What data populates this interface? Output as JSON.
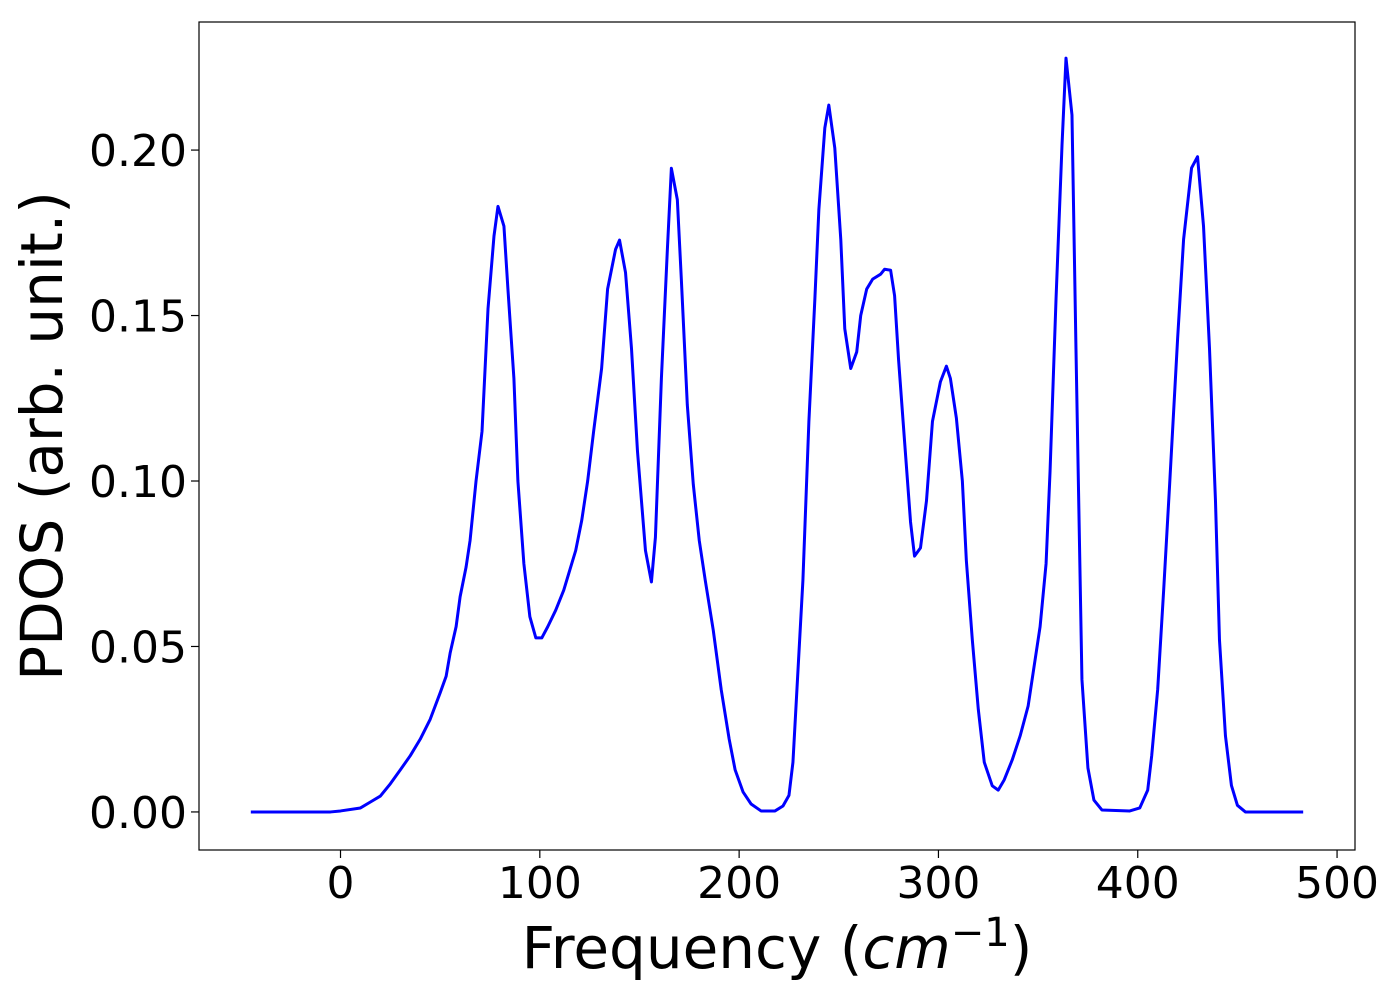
{
  "chart_data": {
    "type": "line",
    "ylabel": "PDOS (arb. unit.)",
    "xlabel": [
      "Frequency (",
      "cm",
      "−1",
      ")"
    ],
    "xlim": [
      -71,
      509
    ],
    "ylim": [
      -0.0115,
      0.2387
    ],
    "xticks": [
      0,
      100,
      200,
      300,
      400,
      500
    ],
    "yticks": [
      {
        "value": 0,
        "label": "0.00"
      },
      {
        "value": 0.05,
        "label": "0.05"
      },
      {
        "value": 0.1,
        "label": "0.10"
      },
      {
        "value": 0.15,
        "label": "0.15"
      },
      {
        "value": 0.2,
        "label": "0.20"
      }
    ],
    "x": [
      -45,
      -5,
      0,
      10,
      15,
      20,
      25,
      30,
      35,
      40,
      45,
      50,
      53,
      55,
      58,
      60,
      63,
      65,
      68,
      71,
      74,
      77,
      79,
      82,
      84,
      87,
      89,
      92,
      95,
      98,
      101,
      104,
      108,
      112,
      115,
      118,
      121,
      124,
      127,
      131,
      134,
      138,
      140,
      143,
      146,
      149,
      153,
      156,
      158,
      161,
      164,
      166,
      169,
      171,
      174,
      177,
      180,
      183,
      187,
      191,
      195,
      198,
      202,
      206,
      211,
      218,
      222,
      225,
      227,
      229,
      232,
      235,
      238,
      240,
      243,
      245,
      248,
      251,
      253,
      256,
      259,
      261,
      264,
      267,
      271,
      273,
      276,
      278,
      280,
      283,
      286,
      288,
      291,
      294,
      297,
      301,
      304,
      306,
      309,
      312,
      314,
      317,
      320,
      323,
      327,
      330,
      333,
      337,
      341,
      345,
      348,
      351,
      354,
      356,
      359,
      362,
      364,
      367,
      369,
      372,
      375,
      378,
      382,
      396,
      401,
      405,
      407,
      410,
      413,
      416,
      420,
      423,
      427,
      430,
      433,
      436,
      439,
      441,
      444,
      447,
      450,
      454,
      483
    ],
    "series": [
      {
        "color": "#0000ff",
        "values": [
          0,
          0,
          0.0003,
          0.0012,
          0.003,
          0.0048,
          0.0085,
          0.0127,
          0.017,
          0.022,
          0.028,
          0.036,
          0.041,
          0.048,
          0.056,
          0.065,
          0.074,
          0.082,
          0.1,
          0.115,
          0.152,
          0.174,
          0.183,
          0.177,
          0.158,
          0.131,
          0.1,
          0.075,
          0.059,
          0.0526,
          0.0526,
          0.056,
          0.061,
          0.067,
          0.073,
          0.079,
          0.088,
          0.1,
          0.115,
          0.134,
          0.158,
          0.17,
          0.1728,
          0.163,
          0.14,
          0.109,
          0.079,
          0.0695,
          0.083,
          0.131,
          0.17,
          0.1945,
          0.185,
          0.161,
          0.123,
          0.099,
          0.082,
          0.07,
          0.055,
          0.037,
          0.022,
          0.0127,
          0.006,
          0.0024,
          0.0003,
          0.0003,
          0.0018,
          0.005,
          0.015,
          0.037,
          0.07,
          0.118,
          0.155,
          0.182,
          0.2067,
          0.2136,
          0.2006,
          0.173,
          0.146,
          0.134,
          0.139,
          0.15,
          0.158,
          0.161,
          0.1625,
          0.164,
          0.1637,
          0.156,
          0.1366,
          0.112,
          0.0876,
          0.0773,
          0.0798,
          0.094,
          0.118,
          0.13,
          0.1347,
          0.131,
          0.119,
          0.1,
          0.076,
          0.052,
          0.031,
          0.015,
          0.0079,
          0.0066,
          0.0097,
          0.0157,
          0.023,
          0.032,
          0.044,
          0.056,
          0.075,
          0.103,
          0.155,
          0.2015,
          0.2278,
          0.2106,
          0.14,
          0.04,
          0.0133,
          0.0036,
          0.0006,
          0.0003,
          0.0012,
          0.0066,
          0.017,
          0.037,
          0.067,
          0.099,
          0.143,
          0.173,
          0.1946,
          0.198,
          0.177,
          0.14,
          0.094,
          0.052,
          0.023,
          0.008,
          0.002,
          0,
          0
        ]
      }
    ]
  }
}
